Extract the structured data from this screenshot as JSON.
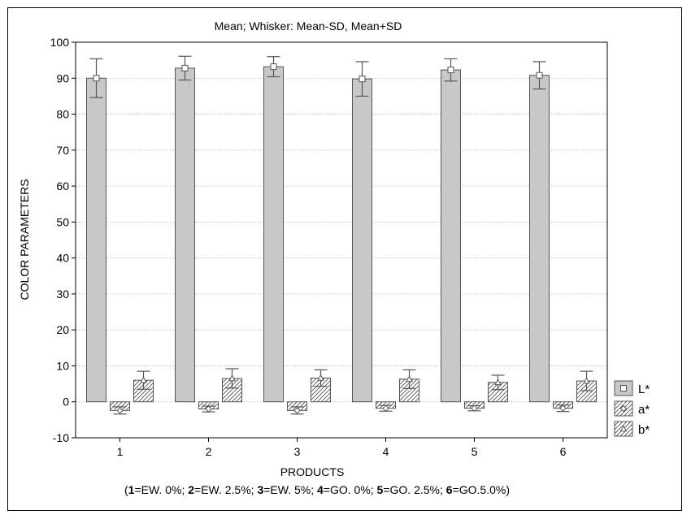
{
  "chart_data": {
    "type": "bar",
    "title": "Mean;  Whisker: Mean-SD, Mean+SD",
    "xlabel": "PRODUCTS",
    "ylabel": "COLOR  PARAMETERS",
    "footnote": [
      {
        "key": "1",
        "text": "=EW. 0%;  "
      },
      {
        "key": "2",
        "text": "=EW. 2.5%; "
      },
      {
        "key": "3",
        "text": "=EW. 5%;  "
      },
      {
        "key": "4",
        "text": "=GO. 0%;  "
      },
      {
        "key": "5",
        "text": "=GO. 2.5%;  "
      },
      {
        "key": "6",
        "text": "=GO.5.0%)"
      }
    ],
    "footnote_open": "(",
    "categories": [
      "1",
      "2",
      "3",
      "4",
      "5",
      "6"
    ],
    "ylim": [
      -10,
      100
    ],
    "yticks": [
      -10,
      0,
      10,
      20,
      30,
      40,
      50,
      60,
      70,
      80,
      90,
      100
    ],
    "grid": true,
    "legend_position": "right",
    "series": [
      {
        "name": "L*",
        "marker": "square",
        "fill": "#c8c8c8",
        "values": [
          90.0,
          92.8,
          93.2,
          89.8,
          92.3,
          90.8
        ],
        "sd": [
          5.4,
          3.3,
          2.8,
          4.8,
          3.1,
          3.8
        ]
      },
      {
        "name": "a*",
        "marker": "diamond",
        "fill": "hatch",
        "values": [
          -2.4,
          -2.0,
          -2.4,
          -1.8,
          -1.8,
          -1.8
        ],
        "sd": [
          1.0,
          0.8,
          1.0,
          0.8,
          0.7,
          0.9
        ]
      },
      {
        "name": "b*",
        "marker": "triangle",
        "fill": "hatch",
        "values": [
          6.0,
          6.5,
          6.6,
          6.3,
          5.4,
          5.8
        ],
        "sd": [
          2.5,
          2.7,
          2.3,
          2.6,
          2.0,
          2.7
        ]
      }
    ]
  }
}
